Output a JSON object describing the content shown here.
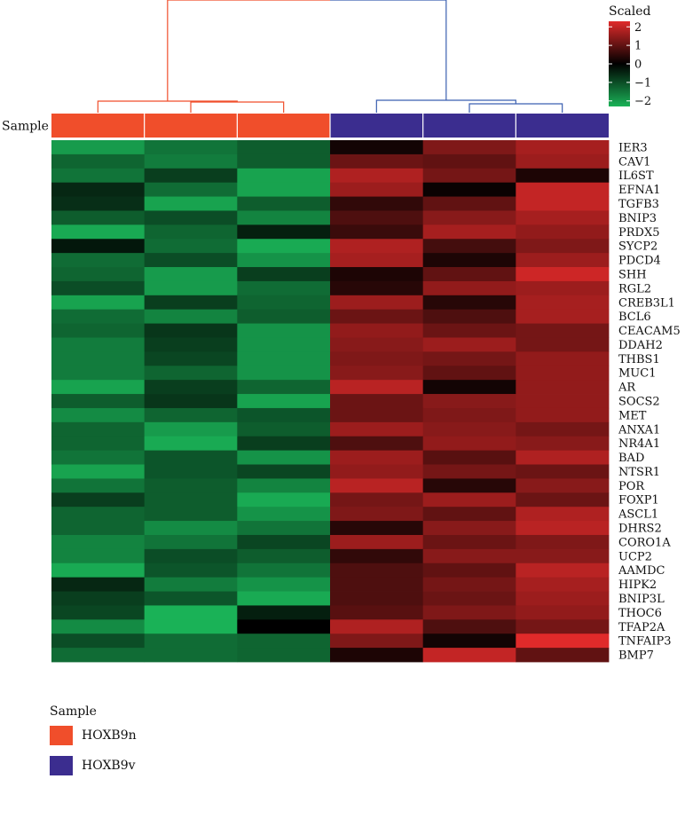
{
  "chart_data": {
    "type": "heatmap",
    "title": "",
    "xlabel": "",
    "ylabel": "",
    "annotation_label": "Sample",
    "colorbar": {
      "title": "Scaled",
      "ticks": [
        "2",
        "1",
        "0",
        "−1",
        "−2"
      ],
      "range": [
        -2.3,
        2.3
      ],
      "colors": {
        "low": "#1ab257",
        "mid": "#000000",
        "high": "#e02a2a"
      }
    },
    "groups": [
      {
        "name": "HOXB9n",
        "color": "#f04e2b"
      },
      {
        "name": "HOXB9v",
        "color": "#3b2d8f"
      }
    ],
    "column_groups": [
      0,
      0,
      0,
      1,
      1,
      1
    ],
    "dendrogram": {
      "colors": [
        "#f04e2b",
        "#3b5fb0"
      ]
    },
    "genes": [
      "IER3",
      "CAV1",
      "IL6ST",
      "EFNA1",
      "TGFB3",
      "BNIP3",
      "PRDX5",
      "SYCP2",
      "PDCD4",
      "SHH",
      "RGL2",
      "CREB3L1",
      "BCL6",
      "CEACAM5",
      "DDAH2",
      "THBS1",
      "MUC1",
      "AR",
      "SOCS2",
      "MET",
      "ANXA1",
      "NR4A1",
      "BAD",
      "NTSR1",
      "POR",
      "FOXP1",
      "ASCL1",
      "DHRS2",
      "CORO1A",
      "UCP2",
      "AAMDC",
      "HIPK2",
      "BNIP3L",
      "THOC6",
      "TFAP2A",
      "TNFAIP3",
      "BMP7"
    ],
    "values": [
      [
        -2.0,
        -1.5,
        -1.2,
        0.2,
        1.3,
        1.7
      ],
      [
        -1.3,
        -1.6,
        -1.2,
        1.1,
        1.0,
        1.6
      ],
      [
        -1.5,
        -0.8,
        -2.1,
        1.8,
        1.2,
        0.3
      ],
      [
        -0.5,
        -1.4,
        -2.1,
        1.6,
        0.1,
        2.0
      ],
      [
        -0.6,
        -2.1,
        -1.2,
        0.5,
        1.0,
        2.0
      ],
      [
        -1.2,
        -1.0,
        -1.7,
        0.8,
        1.4,
        1.7
      ],
      [
        -2.2,
        -1.3,
        -0.4,
        0.6,
        1.7,
        1.5
      ],
      [
        -0.3,
        -1.4,
        -2.2,
        1.8,
        0.7,
        1.3
      ],
      [
        -1.4,
        -1.0,
        -1.9,
        1.7,
        0.3,
        1.6
      ],
      [
        -1.3,
        -2.0,
        -0.8,
        0.3,
        1.0,
        2.1
      ],
      [
        -1.0,
        -2.0,
        -1.4,
        0.4,
        1.5,
        1.6
      ],
      [
        -2.1,
        -0.8,
        -1.3,
        1.6,
        0.4,
        1.7
      ],
      [
        -1.4,
        -1.7,
        -1.2,
        1.1,
        0.8,
        1.7
      ],
      [
        -1.3,
        -0.7,
        -1.9,
        1.5,
        1.1,
        1.2
      ],
      [
        -1.6,
        -0.8,
        -1.9,
        1.4,
        1.6,
        1.2
      ],
      [
        -1.6,
        -0.9,
        -1.9,
        1.3,
        1.2,
        1.5
      ],
      [
        -1.6,
        -1.3,
        -1.9,
        1.4,
        1.0,
        1.5
      ],
      [
        -2.1,
        -0.8,
        -1.3,
        1.9,
        0.2,
        1.5
      ],
      [
        -1.2,
        -0.7,
        -2.1,
        1.1,
        1.4,
        1.5
      ],
      [
        -1.8,
        -1.3,
        -1.1,
        1.1,
        1.3,
        1.5
      ],
      [
        -1.3,
        -2.0,
        -1.2,
        1.6,
        1.4,
        1.2
      ],
      [
        -1.3,
        -2.2,
        -0.8,
        0.8,
        1.5,
        1.4
      ],
      [
        -1.5,
        -1.1,
        -1.9,
        1.6,
        0.9,
        1.8
      ],
      [
        -2.1,
        -1.1,
        -0.9,
        1.5,
        1.2,
        1.1
      ],
      [
        -1.5,
        -1.2,
        -1.7,
        1.9,
        0.4,
        1.4
      ],
      [
        -0.8,
        -1.2,
        -2.2,
        1.2,
        1.6,
        1.1
      ],
      [
        -1.3,
        -1.2,
        -1.9,
        1.3,
        1.0,
        1.8
      ],
      [
        -1.3,
        -1.8,
        -1.5,
        0.4,
        1.4,
        1.9
      ],
      [
        -1.7,
        -1.5,
        -0.9,
        1.6,
        1.1,
        1.3
      ],
      [
        -1.7,
        -1.0,
        -1.2,
        0.5,
        1.4,
        1.4
      ],
      [
        -2.2,
        -1.1,
        -1.5,
        0.8,
        1.0,
        1.9
      ],
      [
        -0.5,
        -1.6,
        -1.9,
        0.8,
        1.2,
        1.7
      ],
      [
        -0.8,
        -1.1,
        -2.2,
        0.8,
        1.1,
        1.6
      ],
      [
        -0.9,
        -2.3,
        -0.4,
        0.9,
        1.3,
        1.5
      ],
      [
        -1.8,
        -2.3,
        0.0,
        1.8,
        0.8,
        1.2
      ],
      [
        -1.0,
        -1.4,
        -1.3,
        1.3,
        0.2,
        2.3
      ],
      [
        -1.4,
        -1.4,
        -1.3,
        0.3,
        2.0,
        1.0
      ]
    ]
  }
}
